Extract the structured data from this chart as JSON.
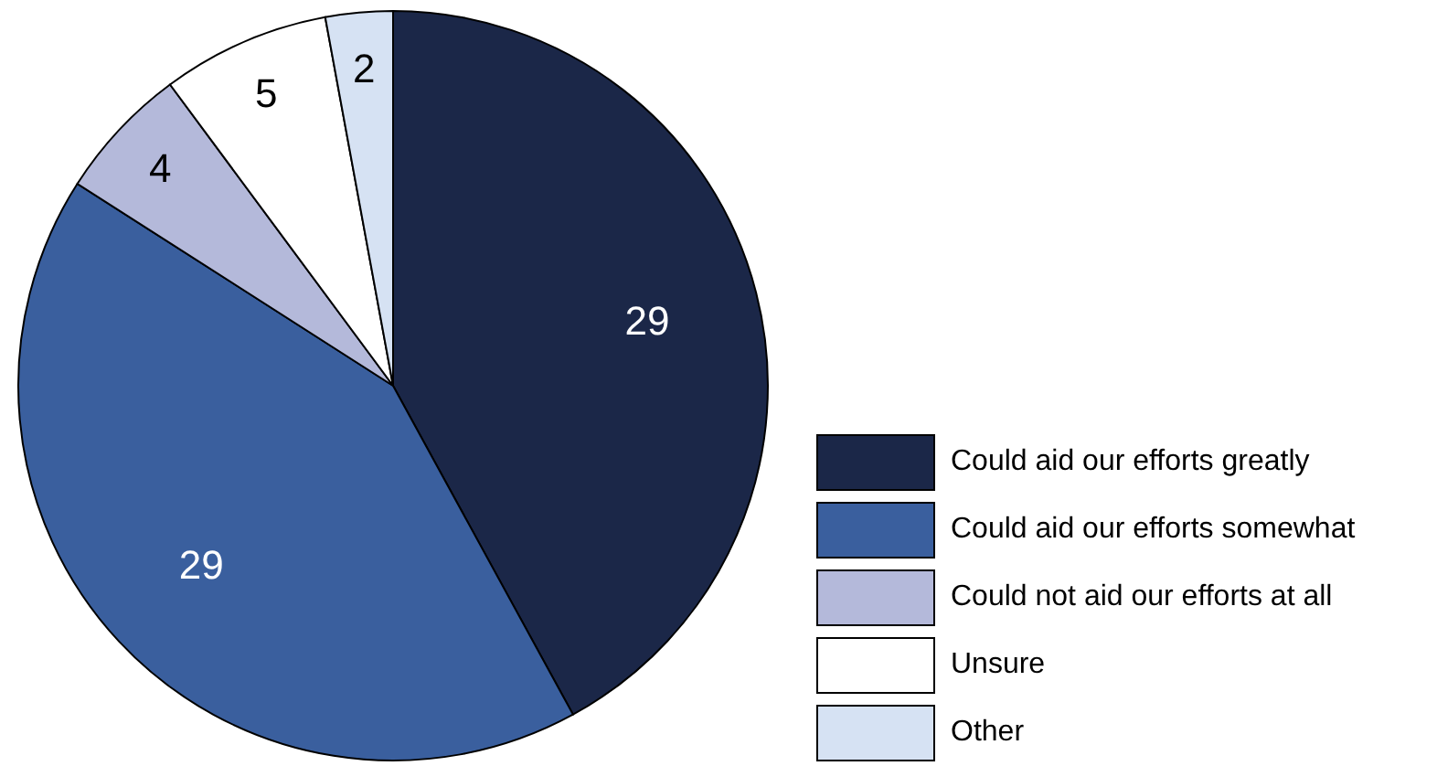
{
  "chart_data": {
    "type": "pie",
    "categories": [
      "Could aid our efforts greatly",
      "Could aid our efforts somewhat",
      "Could not aid our efforts at all",
      "Unsure",
      "Other"
    ],
    "values": [
      29,
      29,
      4,
      5,
      2
    ],
    "colors": [
      "#1b2748",
      "#3a5f9e",
      "#b4b9da",
      "#ffffff",
      "#d6e2f3"
    ],
    "data_labels": true,
    "legend": "bottom right"
  }
}
